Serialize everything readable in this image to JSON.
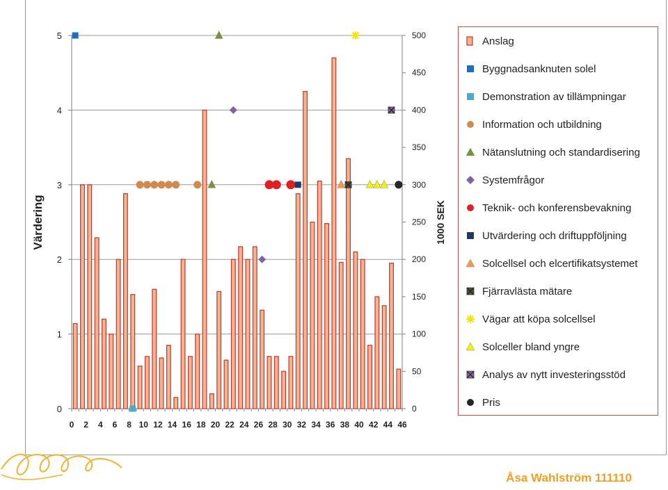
{
  "author": "Åsa Wahlström 111110",
  "chart_data": {
    "type": "bar",
    "xlabel": "",
    "ylabel": "Värdering",
    "y2label": "1000 SEK",
    "xlim": [
      0,
      46
    ],
    "xticks": [
      0,
      2,
      4,
      6,
      8,
      10,
      12,
      14,
      16,
      18,
      20,
      22,
      24,
      26,
      28,
      30,
      32,
      34,
      36,
      38,
      40,
      42,
      44,
      46
    ],
    "ylim": [
      0,
      5
    ],
    "yticks": [
      0,
      1,
      2,
      3,
      4,
      5
    ],
    "y2lim": [
      0,
      500
    ],
    "y2ticks": [
      0,
      50,
      100,
      150,
      200,
      250,
      300,
      350,
      400,
      450,
      500
    ],
    "grid": "horizontal",
    "legend_position": "right",
    "bar_series": {
      "name": "Anslag",
      "color": "#f4b393",
      "edge_color": "#c0392b",
      "x": [
        0.5,
        1.5,
        2.5,
        3.5,
        4.5,
        5.5,
        6.5,
        7.5,
        8.5,
        9.5,
        10.5,
        11.5,
        12.5,
        13.5,
        14.5,
        15.5,
        16.5,
        17.5,
        18.5,
        19.5,
        20.5,
        21.5,
        22.5,
        23.5,
        24.5,
        25.5,
        26.5,
        27.5,
        28.5,
        29.5,
        30.5,
        31.5,
        32.5,
        33.5,
        34.5,
        35.5,
        36.5,
        37.5,
        38.5,
        39.5,
        40.5,
        41.5,
        42.5,
        43.5,
        44.5,
        45.5
      ],
      "values": [
        114,
        300,
        300,
        229,
        120,
        100,
        200,
        288,
        153,
        57,
        70,
        160,
        68,
        85,
        15,
        200,
        70,
        100,
        400,
        20,
        157,
        65,
        200,
        217,
        200,
        217,
        132,
        70,
        70,
        50,
        70,
        288,
        425,
        250,
        305,
        248,
        470,
        196,
        335,
        210,
        200,
        85,
        150,
        138,
        195,
        53
      ]
    },
    "marker_series": [
      {
        "name": "Byggnadsanknuten solel",
        "marker": "square",
        "color": "#1f6fbf",
        "points": [
          [
            0.5,
            5
          ]
        ]
      },
      {
        "name": "Demonstration av tillämpningar",
        "marker": "square",
        "color": "#4bacc6",
        "points": [
          [
            8.5,
            0
          ]
        ]
      },
      {
        "name": "Information och utbildning",
        "marker": "circle",
        "color": "#d08a4e",
        "points": [
          [
            9.5,
            3
          ],
          [
            10.5,
            3
          ],
          [
            11.5,
            3
          ],
          [
            12.5,
            3
          ],
          [
            13.5,
            3
          ],
          [
            14.5,
            3
          ],
          [
            17.5,
            3
          ]
        ]
      },
      {
        "name": "Nätanslutning och standardisering",
        "marker": "triangle",
        "color": "#77933c",
        "points": [
          [
            19.5,
            3
          ],
          [
            20.5,
            5
          ]
        ]
      },
      {
        "name": "Systemfrågor",
        "marker": "diamond",
        "color": "#8064a2",
        "points": [
          [
            22.5,
            4
          ],
          [
            26.5,
            2
          ]
        ]
      },
      {
        "name": "Teknik- och konferensbevakning",
        "marker": "circle",
        "color": "#e02020",
        "points": [
          [
            27.5,
            3
          ],
          [
            28.5,
            3
          ],
          [
            30.5,
            3
          ]
        ]
      },
      {
        "name": "Utvärdering och driftuppföljning",
        "marker": "square",
        "color": "#1f3864",
        "points": [
          [
            31.5,
            3
          ]
        ]
      },
      {
        "name": "Solcellsel och elcertifikatsystemet",
        "marker": "triangle",
        "color": "#f79646",
        "points": [
          [
            37.5,
            3
          ]
        ]
      },
      {
        "name": "Fjärravlästa mätare",
        "marker": "xsquare",
        "color": "#4f4f3a",
        "points": [
          [
            38.5,
            3
          ]
        ]
      },
      {
        "name": "Vägar att köpa solcellsel",
        "marker": "star",
        "color": "#f2e600",
        "points": [
          [
            39.5,
            5
          ]
        ]
      },
      {
        "name": "Solceller bland yngre",
        "marker": "triangle",
        "color": "#f2f200",
        "points": [
          [
            41.5,
            3
          ],
          [
            42.5,
            3
          ],
          [
            43.5,
            3
          ]
        ]
      },
      {
        "name": "Analys av nytt investeringsstöd",
        "marker": "xsquare",
        "color": "#8064a2",
        "points": [
          [
            44.5,
            4
          ]
        ]
      },
      {
        "name": "Pris",
        "marker": "circle",
        "color": "#262626",
        "points": [
          [
            45.5,
            3
          ]
        ]
      }
    ]
  }
}
